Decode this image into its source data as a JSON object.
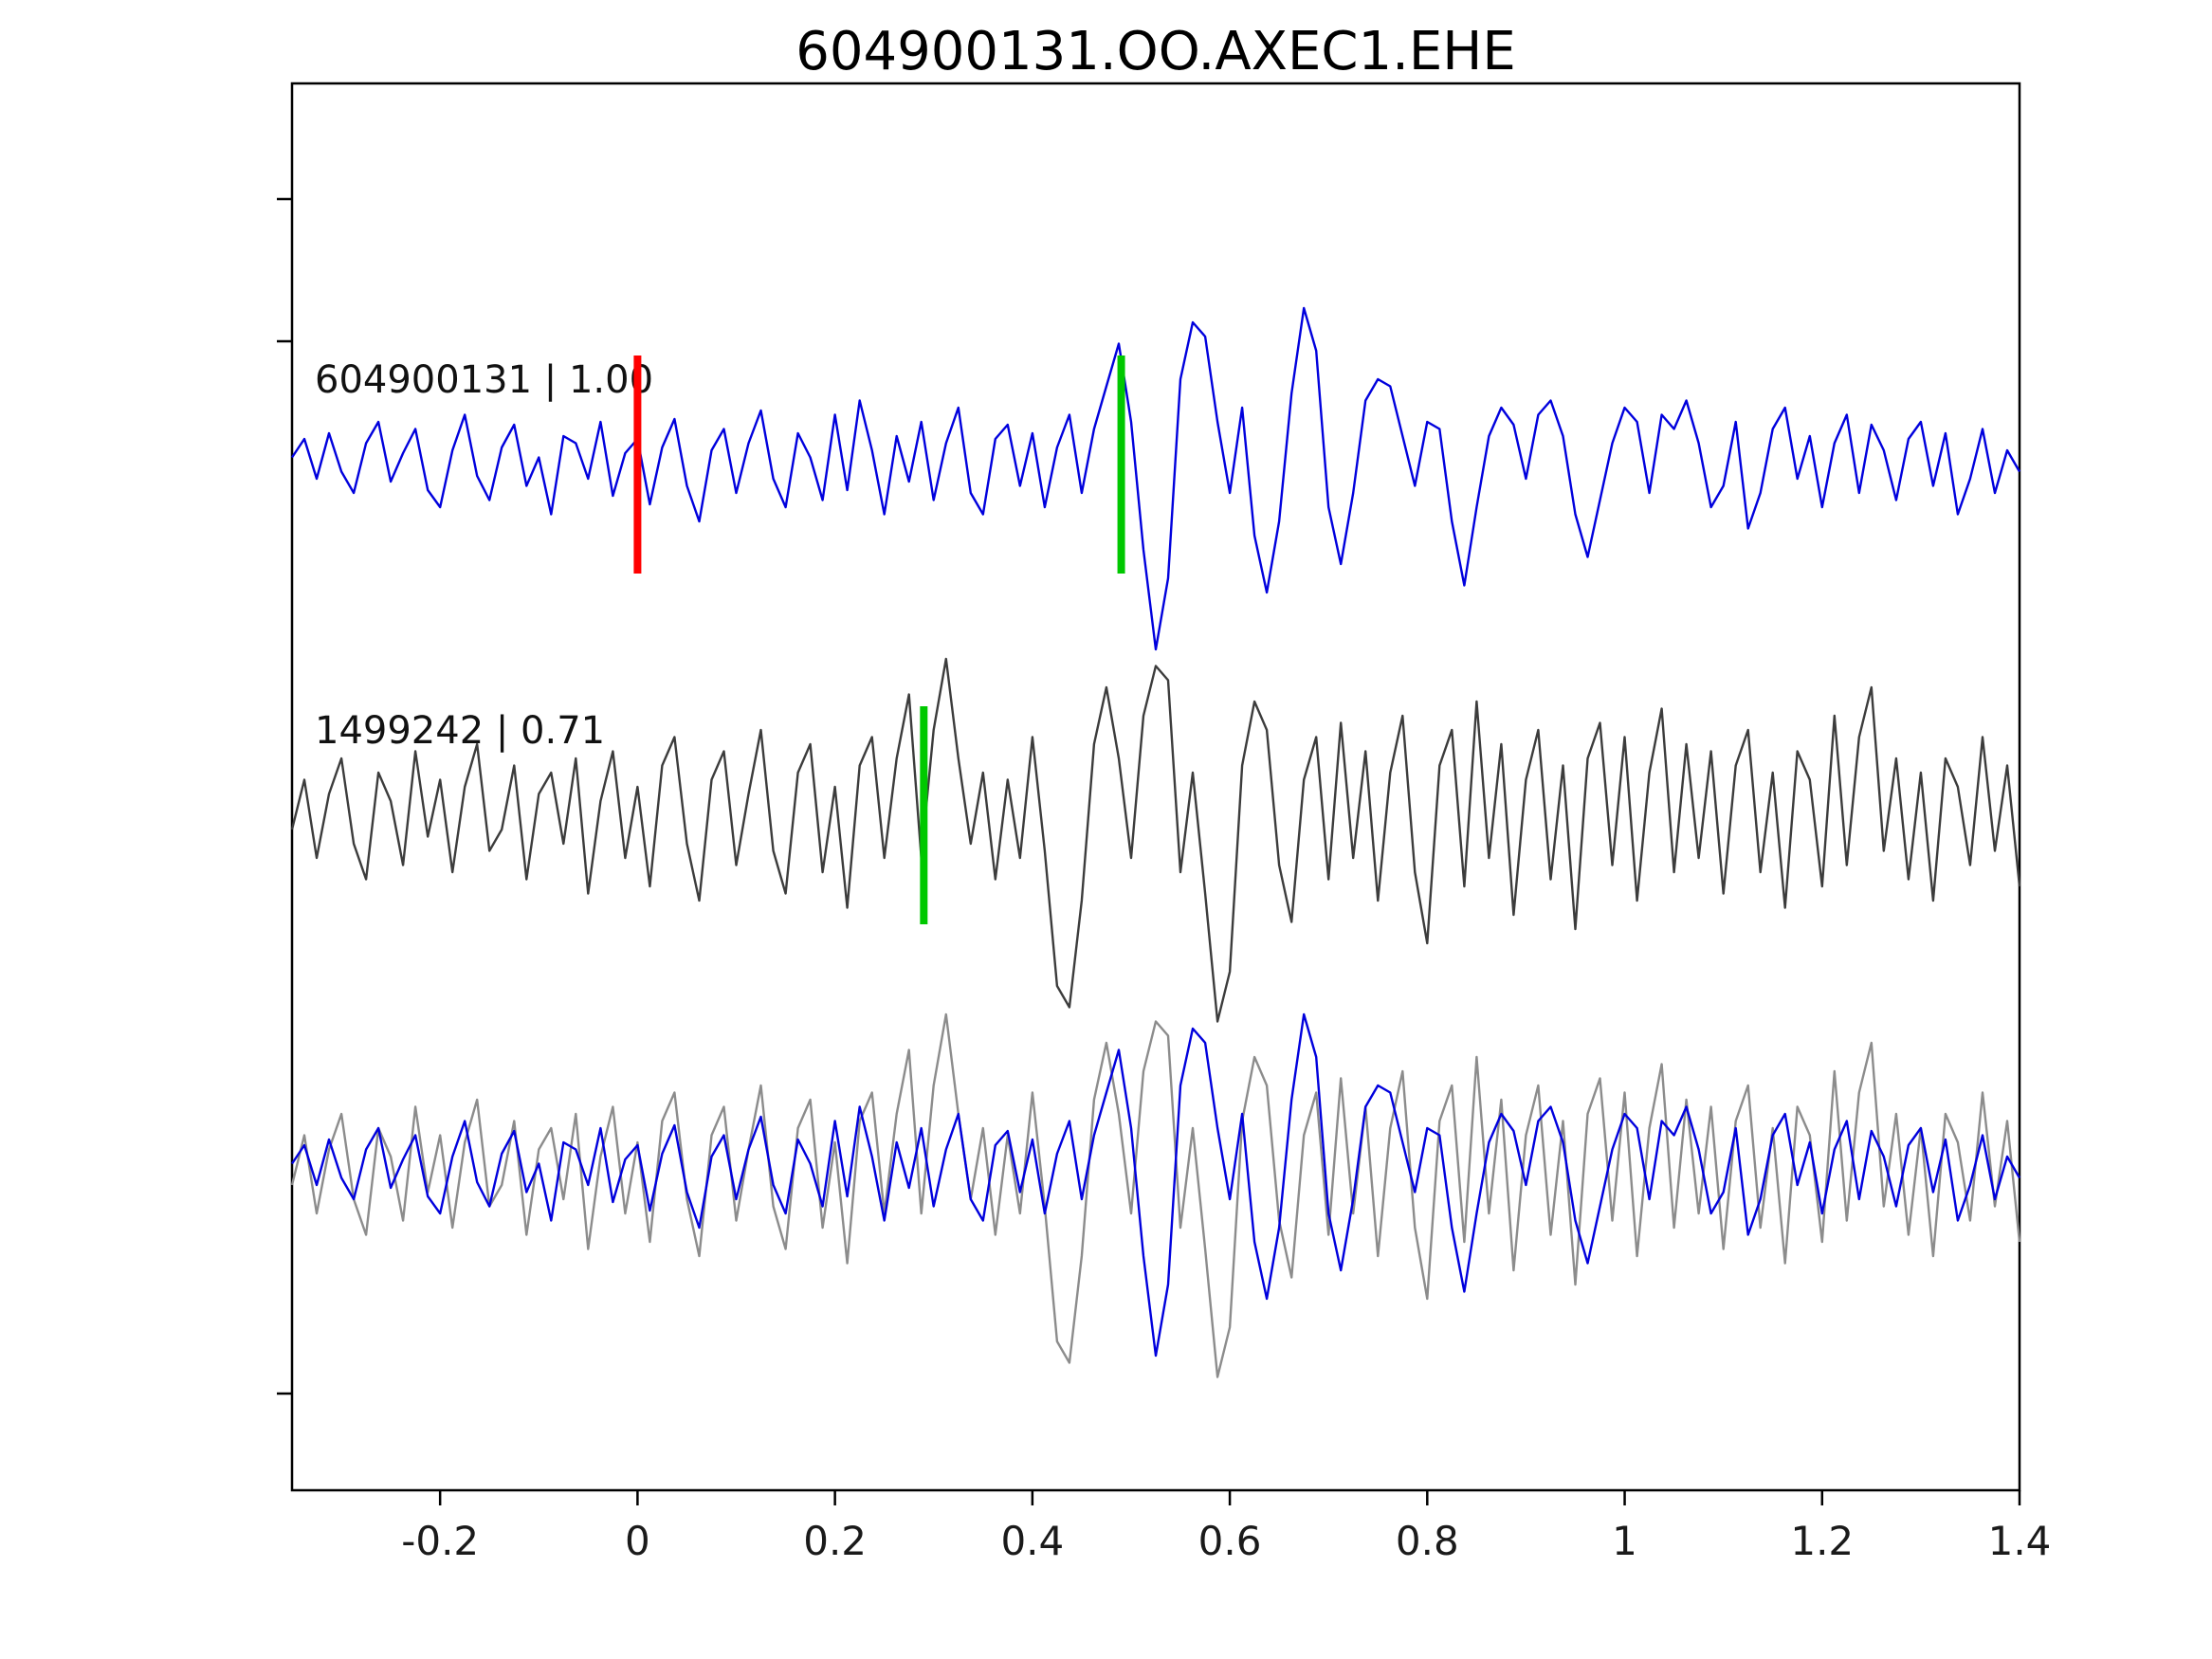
{
  "chart_data": {
    "type": "line",
    "title": "604900131.OO.AXEC1.EHE",
    "x_range": [
      -0.35,
      1.4
    ],
    "x_ticks": {
      "values": [
        -0.2,
        0,
        0.2,
        0.4,
        0.6,
        0.8,
        1,
        1.2,
        1.4
      ],
      "labels": [
        "-0.2",
        "0",
        "0.2",
        "0.4",
        "0.6",
        "0.8",
        "1",
        "1.2",
        "1.4"
      ]
    },
    "grid": false,
    "legend": "none",
    "sample_x_start": -0.35,
    "sample_x_step": 0.0125,
    "traces": [
      {
        "id": "event",
        "label": "604900131 | 1.00",
        "color": "#0000dd",
        "row": 0,
        "values": [
          0.05,
          0.18,
          -0.1,
          0.22,
          -0.05,
          -0.2,
          0.15,
          0.3,
          -0.12,
          0.08,
          0.25,
          -0.18,
          -0.3,
          0.1,
          0.35,
          -0.08,
          -0.25,
          0.12,
          0.28,
          -0.15,
          0.05,
          -0.35,
          0.2,
          0.15,
          -0.1,
          0.3,
          -0.22,
          0.08,
          0.18,
          -0.28,
          0.12,
          0.32,
          -0.15,
          -0.4,
          0.1,
          0.25,
          -0.2,
          0.15,
          0.38,
          -0.1,
          -0.3,
          0.22,
          0.05,
          -0.25,
          0.35,
          -0.18,
          0.45,
          0.1,
          -0.35,
          0.2,
          -0.12,
          0.3,
          -0.25,
          0.15,
          0.4,
          -0.2,
          -0.35,
          0.18,
          0.28,
          -0.15,
          0.22,
          -0.3,
          0.12,
          0.35,
          -0.2,
          0.25,
          0.55,
          0.85,
          0.3,
          -0.6,
          -1.3,
          -0.8,
          0.6,
          1.0,
          0.9,
          0.3,
          -0.2,
          0.4,
          -0.5,
          -0.9,
          -0.4,
          0.5,
          1.1,
          0.8,
          -0.3,
          -0.7,
          -0.2,
          0.45,
          0.6,
          0.55,
          0.2,
          -0.15,
          0.3,
          0.25,
          -0.4,
          -0.85,
          -0.3,
          0.2,
          0.4,
          0.28,
          -0.1,
          0.35,
          0.45,
          0.2,
          -0.35,
          -0.65,
          -0.25,
          0.15,
          0.4,
          0.3,
          -0.2,
          0.35,
          0.25,
          0.45,
          0.15,
          -0.3,
          -0.15,
          0.3,
          -0.45,
          -0.2,
          0.25,
          0.4,
          -0.1,
          0.2,
          -0.3,
          0.15,
          0.35,
          -0.2,
          0.28,
          0.1,
          -0.25,
          0.18,
          0.3,
          -0.15,
          0.22,
          -0.35,
          -0.1,
          0.25,
          -0.2,
          0.1,
          -0.05
        ]
      },
      {
        "id": "template",
        "label": "1499242 | 0.71",
        "color": "#3c3c3c",
        "row": 1,
        "values": [
          -0.1,
          0.25,
          -0.3,
          0.15,
          0.4,
          -0.2,
          -0.45,
          0.3,
          0.1,
          -0.35,
          0.45,
          -0.15,
          0.25,
          -0.4,
          0.2,
          0.5,
          -0.25,
          -0.1,
          0.35,
          -0.45,
          0.15,
          0.3,
          -0.2,
          0.4,
          -0.55,
          0.1,
          0.45,
          -0.3,
          0.2,
          -0.5,
          0.35,
          0.55,
          -0.2,
          -0.6,
          0.25,
          0.45,
          -0.35,
          0.15,
          0.6,
          -0.25,
          -0.55,
          0.3,
          0.5,
          -0.4,
          0.2,
          -0.65,
          0.35,
          0.55,
          -0.3,
          0.4,
          0.85,
          -0.3,
          0.6,
          1.1,
          0.4,
          -0.2,
          0.3,
          -0.45,
          0.25,
          -0.3,
          0.55,
          -0.25,
          -1.2,
          -1.35,
          -0.6,
          0.5,
          0.9,
          0.4,
          -0.3,
          0.7,
          1.05,
          0.95,
          -0.4,
          0.3,
          -0.55,
          -1.45,
          -1.1,
          0.35,
          0.8,
          0.6,
          -0.35,
          -0.75,
          0.25,
          0.55,
          -0.45,
          0.65,
          -0.3,
          0.45,
          -0.6,
          0.3,
          0.7,
          -0.4,
          -0.9,
          0.35,
          0.6,
          -0.5,
          0.8,
          -0.3,
          0.5,
          -0.7,
          0.25,
          0.6,
          -0.45,
          0.35,
          -0.8,
          0.4,
          0.65,
          -0.35,
          0.55,
          -0.6,
          0.3,
          0.75,
          -0.4,
          0.5,
          -0.3,
          0.45,
          -0.55,
          0.35,
          0.6,
          -0.4,
          0.3,
          -0.65,
          0.45,
          0.25,
          -0.5,
          0.7,
          -0.35,
          0.55,
          0.9,
          -0.25,
          0.4,
          -0.45,
          0.3,
          -0.6,
          0.4,
          0.2,
          -0.35,
          0.55,
          -0.25,
          0.35,
          -0.5
        ]
      }
    ],
    "overlay_row": {
      "row": 2,
      "series": [
        {
          "trace": "template",
          "color": "#8c8c8c",
          "x_offset": 0
        },
        {
          "trace": "event",
          "color": "#0000dd",
          "x_offset": 0
        }
      ]
    },
    "markers": [
      {
        "row": 0,
        "x": 0.0,
        "color": "#ff0000"
      },
      {
        "row": 0,
        "x": 0.49,
        "color": "#00c800"
      },
      {
        "row": 1,
        "x": 0.29,
        "color": "#00c800"
      }
    ]
  }
}
